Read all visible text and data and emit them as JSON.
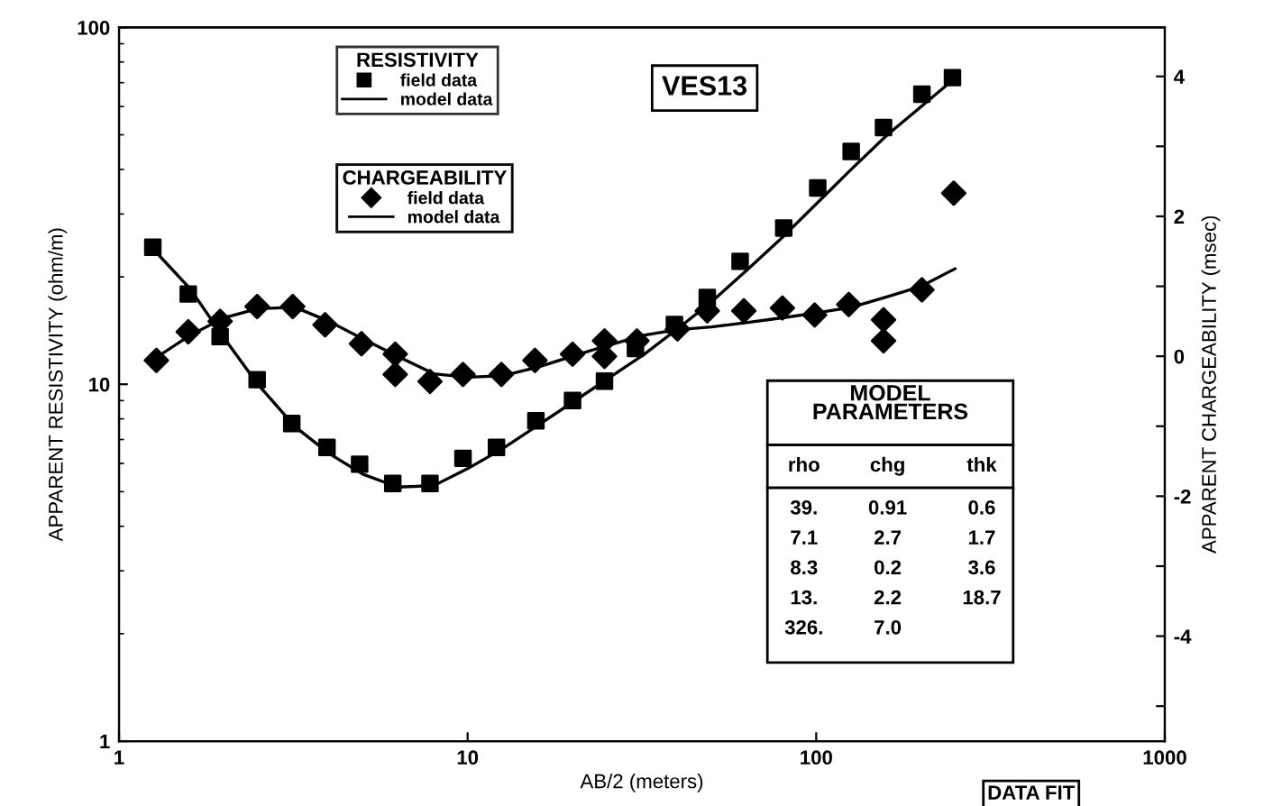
{
  "chart_data": {
    "type": "scatter",
    "xlabel": "AB/2 (meters)",
    "ylabel": "APPARENT RESISTIVITY (ohm/m)",
    "y2label": "APPARENT CHARGEABILITY (msec)",
    "log": "xy",
    "xlim": [
      1,
      1000
    ],
    "xticks": [
      1,
      10,
      100,
      1000
    ],
    "ylim": [
      1,
      100
    ],
    "yticks": [
      1,
      10,
      100
    ],
    "y2lim": [
      -5.5,
      4.7
    ],
    "y2ticks": [
      {
        "value": -5,
        "label": null
      },
      -4,
      {
        "value": -3,
        "label": null
      },
      -2,
      {
        "value": -1,
        "label": null
      },
      0,
      {
        "value": 1,
        "label": null
      },
      2,
      {
        "value": 3,
        "label": null
      },
      4
    ],
    "grid": false,
    "legend": "top left",
    "legend_title": [
      "RESISTIVITY",
      "CHARGEABILITY"
    ],
    "series": [
      {
        "name": "field data",
        "marker": "square",
        "color": "#000000",
        "x": [
          1.25,
          1.58,
          1.95,
          2.49,
          3.13,
          3.95,
          4.9,
          6.1,
          7.8,
          9.7,
          12.1,
          15.7,
          20,
          24.7,
          30.3,
          39.2,
          48.7,
          60.5,
          80.7,
          101,
          126,
          156,
          201,
          246
        ],
        "values": [
          24.2,
          17.9,
          13.6,
          10.3,
          7.76,
          6.65,
          5.97,
          5.27,
          5.27,
          6.2,
          6.65,
          7.9,
          9.0,
          10.2,
          12.6,
          14.7,
          17.5,
          22.1,
          27.4,
          35.5,
          44.9,
          52.4,
          65,
          72.3
        ]
      },
      {
        "name": "model data",
        "type": "line",
        "marker": "none",
        "line_style": "solid",
        "color": "#000000",
        "x": [
          1.25,
          1.6,
          2,
          2.5,
          3.2,
          4,
          5,
          6.3,
          8,
          10,
          12.6,
          16,
          20,
          25,
          32,
          40,
          50,
          63,
          80,
          100,
          126,
          160,
          200,
          250
        ],
        "values": [
          24,
          18.5,
          13.5,
          10,
          7.6,
          6.4,
          5.6,
          5.15,
          5.2,
          5.8,
          6.6,
          7.7,
          8.9,
          10.3,
          12.1,
          14.3,
          17,
          20.8,
          25.8,
          32,
          40,
          50,
          60,
          72
        ]
      },
      {
        "name": "field data",
        "marker": "diamond",
        "axis": "y2",
        "color": "#000000",
        "x": [
          1.28,
          1.58,
          1.95,
          2.49,
          3.15,
          3.9,
          4.96,
          6.2,
          6.2,
          7.8,
          9.7,
          12.5,
          15.6,
          20,
          24.7,
          24.7,
          30.6,
          40,
          48.7,
          62,
          80,
          99,
          124,
          156,
          156,
          201,
          248
        ],
        "values": [
          -0.06,
          0.35,
          0.5,
          0.71,
          0.71,
          0.45,
          0.18,
          0.03,
          -0.26,
          -0.36,
          -0.26,
          -0.26,
          -0.06,
          0.03,
          0.22,
          0.0,
          0.22,
          0.39,
          0.65,
          0.65,
          0.69,
          0.59,
          0.74,
          0.52,
          0.22,
          0.95,
          2.33
        ]
      },
      {
        "name": "model data",
        "type": "line",
        "marker": "none",
        "line_style": "solid",
        "axis": "y2",
        "color": "#000000",
        "x": [
          1.25,
          1.6,
          2,
          2.5,
          3.2,
          4,
          5,
          6.3,
          8,
          10,
          12.6,
          16,
          20,
          25,
          32,
          40,
          50,
          63,
          80,
          100,
          126,
          160,
          200,
          250
        ],
        "values": [
          -0.05,
          0.3,
          0.55,
          0.68,
          0.7,
          0.5,
          0.25,
          0.0,
          -0.25,
          -0.3,
          -0.28,
          -0.15,
          0.0,
          0.15,
          0.3,
          0.38,
          0.42,
          0.48,
          0.55,
          0.62,
          0.7,
          0.85,
          1.0,
          1.25
        ]
      }
    ],
    "annotations": [
      "VES13",
      "MODEL\nPARAMETERS",
      "rho",
      "chg",
      "thk",
      "39.",
      "0.91",
      "0.6",
      "7.1",
      "2.7",
      "1.7",
      "8.3",
      "0.2",
      "3.6",
      "13.",
      "2.2",
      "18.7",
      "326.",
      "7.0",
      "DATA FIT"
    ]
  }
}
